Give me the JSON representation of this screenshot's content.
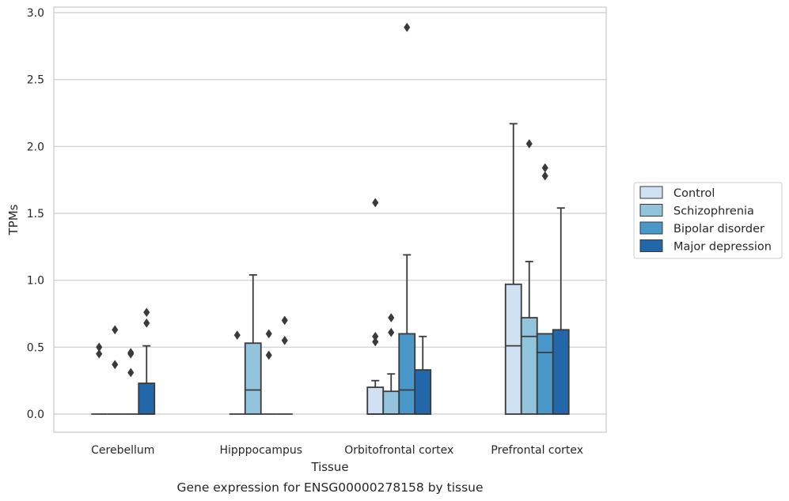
{
  "chart_data": {
    "type": "box",
    "caption": "Gene expression for ENSG00000278158 by tissue",
    "xlabel": "Tissue",
    "ylabel": "TPMs",
    "ylim": [
      -0.14,
      3.05
    ],
    "yticks": [
      "0.0",
      "0.5",
      "1.0",
      "1.5",
      "2.0",
      "2.5",
      "3.0"
    ],
    "grid": true,
    "legend_position": "right",
    "categories": [
      "Cerebellum",
      "Hipppocampus",
      "Orbitofrontal cortex",
      "Prefrontal cortex"
    ],
    "series": [
      {
        "name": "Control",
        "color": "#cfe1f2",
        "boxes": [
          {
            "q1": 0,
            "median": 0,
            "q3": 0,
            "whisker_low": 0,
            "whisker_high": 0,
            "outliers": [
              0.5,
              0.45
            ]
          },
          {
            "q1": 0,
            "median": 0,
            "q3": 0,
            "whisker_low": 0,
            "whisker_high": 0,
            "outliers": [
              0.59
            ]
          },
          {
            "q1": 0,
            "median": 0,
            "q3": 0.2,
            "whisker_low": 0,
            "whisker_high": 0.25,
            "outliers": [
              1.58,
              0.58,
              0.54
            ]
          },
          {
            "q1": 0,
            "median": 0.51,
            "q3": 0.97,
            "whisker_low": 0,
            "whisker_high": 2.17,
            "outliers": []
          }
        ]
      },
      {
        "name": "Schizophrenia",
        "color": "#93c4de",
        "boxes": [
          {
            "q1": 0,
            "median": 0,
            "q3": 0,
            "whisker_low": 0,
            "whisker_high": 0,
            "outliers": [
              0.63,
              0.37
            ]
          },
          {
            "q1": 0,
            "median": 0.18,
            "q3": 0.53,
            "whisker_low": 0,
            "whisker_high": 1.04,
            "outliers": []
          },
          {
            "q1": 0,
            "median": 0,
            "q3": 0.17,
            "whisker_low": 0,
            "whisker_high": 0.3,
            "outliers": [
              0.72,
              0.61
            ]
          },
          {
            "q1": 0,
            "median": 0.58,
            "q3": 0.72,
            "whisker_low": 0,
            "whisker_high": 1.14,
            "outliers": [
              2.02
            ]
          }
        ]
      },
      {
        "name": "Bipolar disorder",
        "color": "#4a98c9",
        "boxes": [
          {
            "q1": 0,
            "median": 0,
            "q3": 0,
            "whisker_low": 0,
            "whisker_high": 0,
            "outliers": [
              0.46,
              0.45,
              0.31
            ]
          },
          {
            "q1": 0,
            "median": 0,
            "q3": 0,
            "whisker_low": 0,
            "whisker_high": 0,
            "outliers": [
              0.6,
              0.44
            ]
          },
          {
            "q1": 0,
            "median": 0.18,
            "q3": 0.6,
            "whisker_low": 0,
            "whisker_high": 1.19,
            "outliers": [
              2.89
            ]
          },
          {
            "q1": 0,
            "median": 0.46,
            "q3": 0.6,
            "whisker_low": 0,
            "whisker_high": 0.6,
            "outliers": [
              1.84,
              1.78
            ]
          }
        ]
      },
      {
        "name": "Major depression",
        "color": "#2367ab",
        "boxes": [
          {
            "q1": 0,
            "median": 0,
            "q3": 0.23,
            "whisker_low": 0,
            "whisker_high": 0.51,
            "outliers": [
              0.76,
              0.68
            ]
          },
          {
            "q1": 0,
            "median": 0,
            "q3": 0,
            "whisker_low": 0,
            "whisker_high": 0,
            "outliers": [
              0.7,
              0.55
            ]
          },
          {
            "q1": 0,
            "median": 0,
            "q3": 0.33,
            "whisker_low": 0,
            "whisker_high": 0.58,
            "outliers": []
          },
          {
            "q1": 0,
            "median": 0,
            "q3": 0.63,
            "whisker_low": 0,
            "whisker_high": 1.54,
            "outliers": []
          }
        ]
      }
    ]
  }
}
